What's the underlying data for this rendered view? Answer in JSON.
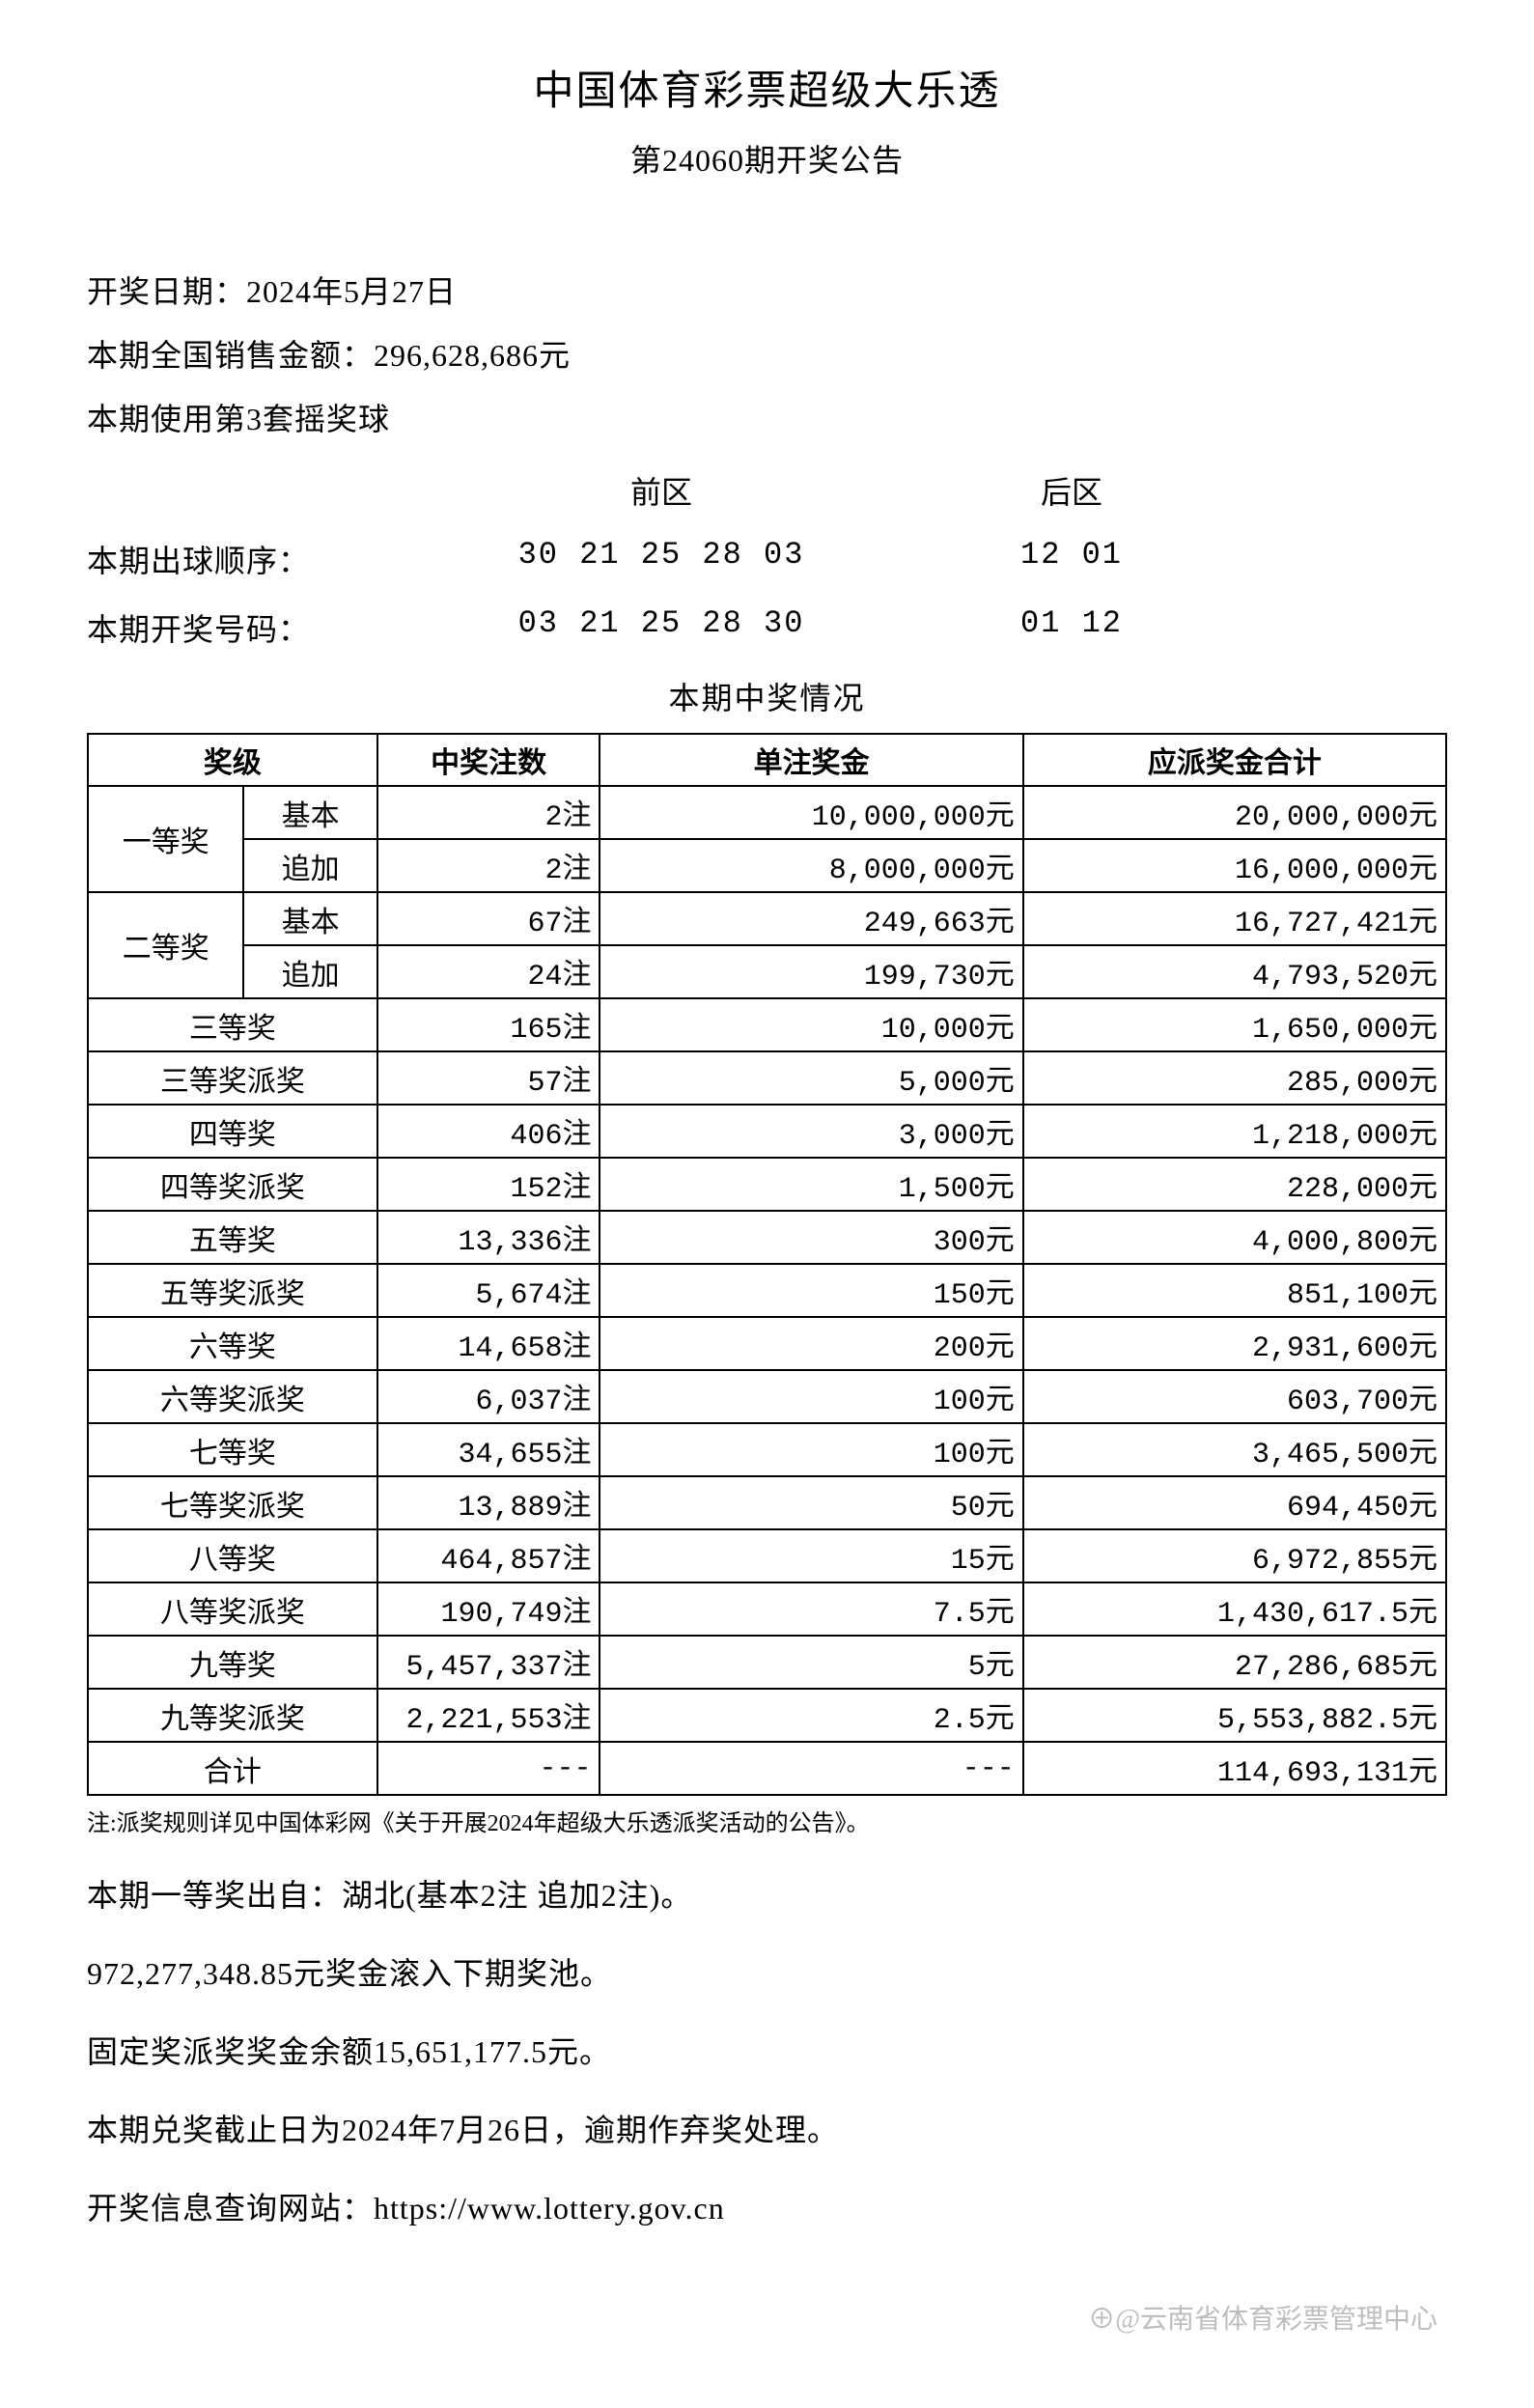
{
  "header": {
    "title": "中国体育彩票超级大乐透",
    "subtitle": "第24060期开奖公告"
  },
  "info": {
    "draw_date_label": "开奖日期：2024年5月27日",
    "sales_amount_label": "本期全国销售金额：296,628,686元",
    "ball_set_label": "本期使用第3套摇奖球"
  },
  "numbers": {
    "front_header": "前区",
    "back_header": "后区",
    "draw_order_label": "本期出球顺序：",
    "draw_order_front": "30 21 25 28 03",
    "draw_order_back": "12 01",
    "winning_label": "本期开奖号码：",
    "winning_front": "03 21 25 28 30",
    "winning_back": "01 12"
  },
  "prize_section": {
    "title": "本期中奖情况",
    "columns": {
      "level": "奖级",
      "count": "中奖注数",
      "per": "单注奖金",
      "total": "应派奖金合计"
    },
    "first": {
      "name": "一等奖",
      "basic_label": "基本",
      "basic_count": "2注",
      "basic_per": "10,000,000元",
      "basic_total": "20,000,000元",
      "add_label": "追加",
      "add_count": "2注",
      "add_per": "8,000,000元",
      "add_total": "16,000,000元"
    },
    "second": {
      "name": "二等奖",
      "basic_label": "基本",
      "basic_count": "67注",
      "basic_per": "249,663元",
      "basic_total": "16,727,421元",
      "add_label": "追加",
      "add_count": "24注",
      "add_per": "199,730元",
      "add_total": "4,793,520元"
    },
    "rows": [
      {
        "name": "三等奖",
        "count": "165注",
        "per": "10,000元",
        "total": "1,650,000元"
      },
      {
        "name": "三等奖派奖",
        "count": "57注",
        "per": "5,000元",
        "total": "285,000元"
      },
      {
        "name": "四等奖",
        "count": "406注",
        "per": "3,000元",
        "total": "1,218,000元"
      },
      {
        "name": "四等奖派奖",
        "count": "152注",
        "per": "1,500元",
        "total": "228,000元"
      },
      {
        "name": "五等奖",
        "count": "13,336注",
        "per": "300元",
        "total": "4,000,800元"
      },
      {
        "name": "五等奖派奖",
        "count": "5,674注",
        "per": "150元",
        "total": "851,100元"
      },
      {
        "name": "六等奖",
        "count": "14,658注",
        "per": "200元",
        "total": "2,931,600元"
      },
      {
        "name": "六等奖派奖",
        "count": "6,037注",
        "per": "100元",
        "total": "603,700元"
      },
      {
        "name": "七等奖",
        "count": "34,655注",
        "per": "100元",
        "total": "3,465,500元"
      },
      {
        "name": "七等奖派奖",
        "count": "13,889注",
        "per": "50元",
        "total": "694,450元"
      },
      {
        "name": "八等奖",
        "count": "464,857注",
        "per": "15元",
        "total": "6,972,855元"
      },
      {
        "name": "八等奖派奖",
        "count": "190,749注",
        "per": "7.5元",
        "total": "1,430,617.5元"
      },
      {
        "name": "九等奖",
        "count": "5,457,337注",
        "per": "5元",
        "total": "27,286,685元"
      },
      {
        "name": "九等奖派奖",
        "count": "2,221,553注",
        "per": "2.5元",
        "total": "5,553,882.5元"
      }
    ],
    "sum": {
      "name": "合计",
      "count": "---",
      "per": "---",
      "total": "114,693,131元"
    },
    "note": "注:派奖规则详见中国体彩网《关于开展2024年超级大乐透派奖活动的公告》。"
  },
  "bottom": {
    "line1": "本期一等奖出自：湖北(基本2注 追加2注)。",
    "line2": "972,277,348.85元奖金滚入下期奖池。",
    "line3": "固定奖派奖奖金余额15,651,177.5元。",
    "line4": "本期兑奖截止日为2024年7月26日，逾期作弃奖处理。",
    "line5": "开奖信息查询网站：https://www.lottery.gov.cn"
  },
  "watermark": "⊕@云南省体育彩票管理中心"
}
